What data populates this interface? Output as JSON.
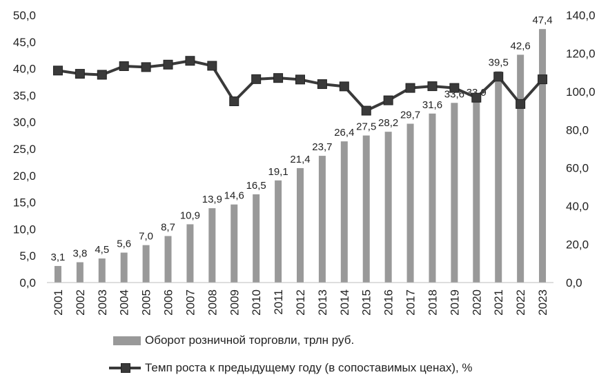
{
  "chart_data": {
    "type": "bar+line",
    "categories": [
      "2001",
      "2002",
      "2003",
      "2004",
      "2005",
      "2006",
      "2007",
      "2008",
      "2009",
      "2010",
      "2011",
      "2012",
      "2013",
      "2014",
      "2015",
      "2016",
      "2017",
      "2018",
      "2019",
      "2020",
      "2021",
      "2022",
      "2023"
    ],
    "series": [
      {
        "name": "Оборот розничной торговли, трлн руб.",
        "type": "bar",
        "axis": "left",
        "color": "#999999",
        "values": [
          3.1,
          3.8,
          4.5,
          5.6,
          7.0,
          8.7,
          10.9,
          13.9,
          14.6,
          16.5,
          19.1,
          21.4,
          23.7,
          26.4,
          27.5,
          28.2,
          29.7,
          31.6,
          33.6,
          33.9,
          39.5,
          42.6,
          47.4
        ],
        "labels": [
          "3,1",
          "3,8",
          "4,5",
          "5,6",
          "7,0",
          "8,7",
          "10,9",
          "13,9",
          "14,6",
          "16,5",
          "19,1",
          "21,4",
          "23,7",
          "26,4",
          "27,5",
          "28,2",
          "29,7",
          "31,6",
          "33,6",
          "33,9",
          "39,5",
          "42,6",
          "47,4"
        ]
      },
      {
        "name": "Темп роста к предыдущему году (в сопоставимых ценах), %",
        "type": "line",
        "axis": "right",
        "color": "#3a3a3a",
        "values": [
          111.0,
          109.3,
          108.8,
          113.3,
          112.8,
          114.1,
          116.1,
          113.5,
          94.9,
          106.5,
          107.1,
          106.3,
          103.9,
          102.7,
          90.0,
          95.4,
          101.9,
          102.8,
          101.9,
          96.8,
          107.8,
          93.5,
          106.4
        ]
      }
    ],
    "y_left": {
      "ylim": [
        0,
        50
      ],
      "ticks": [
        "0,0",
        "5,0",
        "10,0",
        "15,0",
        "20,0",
        "25,0",
        "30,0",
        "35,0",
        "40,0",
        "45,0",
        "50,0"
      ]
    },
    "y_right": {
      "ylim": [
        0,
        140
      ],
      "ticks": [
        "0,0",
        "20,0",
        "40,0",
        "60,0",
        "80,0",
        "100,0",
        "120,0",
        "140,0"
      ]
    },
    "grid": false,
    "legend_position": "bottom"
  },
  "legend": {
    "bar_label": "Оборот розничной торговли, трлн руб.",
    "line_label": "Темп роста к предыдущему году (в сопоставимых ценах), %"
  }
}
